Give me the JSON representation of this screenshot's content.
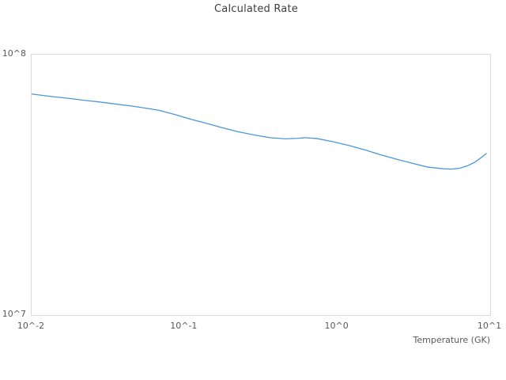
{
  "page": {
    "background": "#ffffff"
  },
  "chart_data": {
    "type": "line",
    "title": "Calculated Rate",
    "xlabel": "Temperature (GK)",
    "ylabel": "",
    "x_scale": "log",
    "y_scale": "log",
    "xlim": [
      0.01,
      10
    ],
    "ylim": [
      10000000,
      100000000
    ],
    "grid": false,
    "legend_position": "none",
    "x_ticks": [
      {
        "label": "10^-2",
        "value": 0.01
      },
      {
        "label": "10^-1",
        "value": 0.1
      },
      {
        "label": "10^0",
        "value": 1
      },
      {
        "label": "10^1",
        "value": 10
      }
    ],
    "y_ticks": [
      {
        "label": "10^8",
        "value": 100000000
      },
      {
        "label": "10^7",
        "value": 10000000
      }
    ],
    "series": [
      {
        "name": "calculated-rate",
        "color": "#4d96d9",
        "x": [
          0.01,
          0.0136,
          0.0173,
          0.0219,
          0.0279,
          0.0354,
          0.0449,
          0.057,
          0.0681,
          0.0864,
          0.11,
          0.139,
          0.177,
          0.224,
          0.284,
          0.361,
          0.458,
          0.546,
          0.617,
          0.738,
          0.937,
          1.19,
          1.51,
          1.91,
          2.43,
          3.08,
          3.9,
          4.95,
          5.58,
          6.28,
          7.08,
          7.97,
          8.67,
          9.42
        ],
        "y": [
          70600000,
          69000000,
          68000000,
          66800000,
          65800000,
          64600000,
          63500000,
          62200000,
          61100000,
          58900000,
          56500000,
          54500000,
          52400000,
          50600000,
          49200000,
          48000000,
          47500000,
          47700000,
          48000000,
          47600000,
          46300000,
          44800000,
          43100000,
          41300000,
          39700000,
          38300000,
          37000000,
          36450000,
          36350000,
          36600000,
          37400000,
          38700000,
          40100000,
          41700000
        ]
      }
    ],
    "colors": {
      "line": "#4d96d9",
      "plot_border": "#d9d9d9",
      "title_text": "#3d3d3d",
      "tick_text": "#595959"
    }
  }
}
